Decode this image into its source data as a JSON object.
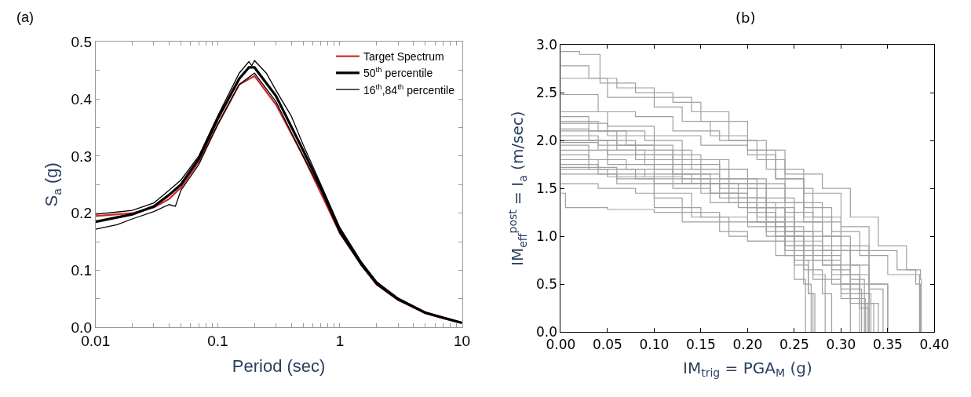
{
  "chart_data": [
    {
      "type": "line",
      "title": "(a)",
      "xlabel": "Period (sec)",
      "ylabel": "S$_{a}$ (g)",
      "log": "x",
      "legend": "top right",
      "xlim": [
        0.01,
        10
      ],
      "ylim": [
        0,
        0.5
      ],
      "xticks": [
        0.01,
        {
          "value": 0.02,
          "label": null
        },
        {
          "value": 0.03,
          "label": null
        },
        {
          "value": 0.04,
          "label": null
        },
        {
          "value": 0.05,
          "label": null
        },
        {
          "value": 0.06,
          "label": null
        },
        {
          "value": 0.07,
          "label": null
        },
        {
          "value": 0.08,
          "label": null
        },
        {
          "value": 0.09,
          "label": null
        },
        0.1,
        {
          "value": 0.2,
          "label": null
        },
        {
          "value": 0.3,
          "label": null
        },
        {
          "value": 0.4,
          "label": null
        },
        {
          "value": 0.5,
          "label": null
        },
        {
          "value": 0.6,
          "label": null
        },
        {
          "value": 0.7,
          "label": null
        },
        {
          "value": 0.8,
          "label": null
        },
        {
          "value": 0.9,
          "label": null
        },
        1,
        {
          "value": 2,
          "label": null
        },
        {
          "value": 3,
          "label": null
        },
        {
          "value": 4,
          "label": null
        },
        {
          "value": 5,
          "label": null
        },
        {
          "value": 6,
          "label": null
        },
        {
          "value": 7,
          "label": null
        },
        {
          "value": 8,
          "label": null
        },
        {
          "value": 9,
          "label": null
        },
        10
      ],
      "yticks": [
        {
          "value": 0,
          "label": "0.0"
        },
        {
          "value": 0.05,
          "label": null
        },
        0.1,
        {
          "value": 0.15,
          "label": null
        },
        0.2,
        {
          "value": 0.25,
          "label": null
        },
        0.3,
        {
          "value": 0.35,
          "label": null
        },
        0.4,
        {
          "value": 0.45,
          "label": null
        },
        0.5
      ],
      "series": [
        {
          "name": "Target Spectrum",
          "color": "#d0262a",
          "x": [
            0.01,
            0.02,
            0.03,
            0.04,
            0.05,
            0.07,
            0.1,
            0.15,
            0.2,
            0.3,
            0.5,
            0.7,
            1,
            1.5,
            2,
            3,
            5,
            7,
            10
          ],
          "values": [
            0.195,
            0.2,
            0.21,
            0.225,
            0.245,
            0.29,
            0.355,
            0.425,
            0.44,
            0.39,
            0.3,
            0.235,
            0.165,
            0.11,
            0.075,
            0.048,
            0.025,
            0.016,
            0.008
          ]
        },
        {
          "name": "50$^{th}$ percentile",
          "color": "#000000",
          "x": [
            0.01,
            0.02,
            0.03,
            0.04,
            0.05,
            0.07,
            0.1,
            0.15,
            0.18,
            0.2,
            0.3,
            0.5,
            0.7,
            1,
            1.5,
            2,
            3,
            5,
            7,
            10
          ],
          "values": [
            0.185,
            0.198,
            0.212,
            0.232,
            0.25,
            0.295,
            0.365,
            0.435,
            0.455,
            0.455,
            0.405,
            0.31,
            0.245,
            0.17,
            0.112,
            0.078,
            0.05,
            0.026,
            0.017,
            0.008
          ]
        },
        {
          "name": "16$^{th}$,84$^{th}$ percentile",
          "color": "#000000",
          "x": [
            0.01,
            0.015,
            0.02,
            0.03,
            0.04,
            0.045,
            0.05,
            0.07,
            0.1,
            0.15,
            0.2,
            0.3,
            0.5,
            0.7,
            1,
            1.5,
            2,
            3,
            5,
            10
          ],
          "values": [
            0.172,
            0.18,
            0.19,
            0.203,
            0.215,
            0.212,
            0.24,
            0.285,
            0.355,
            0.425,
            0.445,
            0.395,
            0.3,
            0.24,
            0.165,
            0.108,
            0.075,
            0.048,
            0.025,
            0.008
          ]
        },
        {
          "color": "#000000",
          "x": [
            0.01,
            0.015,
            0.02,
            0.03,
            0.04,
            0.05,
            0.07,
            0.1,
            0.15,
            0.18,
            0.19,
            0.2,
            0.25,
            0.3,
            0.4,
            0.5,
            0.7,
            1,
            1.5,
            2,
            3,
            5,
            10
          ],
          "values": [
            0.198,
            0.202,
            0.205,
            0.218,
            0.24,
            0.258,
            0.3,
            0.37,
            0.445,
            0.465,
            0.458,
            0.467,
            0.445,
            0.415,
            0.37,
            0.32,
            0.25,
            0.175,
            0.115,
            0.08,
            0.051,
            0.027,
            0.009
          ]
        }
      ]
    },
    {
      "type": "step",
      "title": "(b)",
      "xlabel": "IM$_{trig}$ = PGA$_{M}$ (g)",
      "ylabel": "IM$_{eff}$$^{post}$ = I$_{a}$ (m/sec)",
      "xlim": [
        0,
        0.4
      ],
      "ylim": [
        0,
        3.0
      ],
      "xticks": [
        {
          "value": 0,
          "label": "0.00"
        },
        0.05,
        {
          "value": 0.1,
          "label": "0.10"
        },
        0.15,
        {
          "value": 0.2,
          "label": "0.20"
        },
        0.25,
        {
          "value": 0.3,
          "label": "0.30"
        },
        0.35,
        {
          "value": 0.4,
          "label": "0.40"
        }
      ],
      "yticks": [
        {
          "value": 0,
          "label": "0.0"
        },
        0.5,
        {
          "value": 1,
          "label": "1.0"
        },
        1.5,
        {
          "value": 2,
          "label": "2.0"
        },
        2.5,
        {
          "value": 3,
          "label": "3.0"
        }
      ],
      "series": [
        {
          "color": "#a0a0a0",
          "x": [
            0,
            0.02,
            0.042,
            0.08,
            0.12,
            0.15,
            0.2,
            0.24,
            0.28,
            0.31,
            0.34,
            0.37,
            0.385,
            0.386
          ],
          "values": [
            2.93,
            2.9,
            2.6,
            2.5,
            2.4,
            2.2,
            1.9,
            1.65,
            1.5,
            1.2,
            0.9,
            0.65,
            0.55,
            0
          ]
        },
        {
          "color": "#a0a0a0",
          "x": [
            0,
            0.03,
            0.06,
            0.1,
            0.14,
            0.18,
            0.22,
            0.26,
            0.3,
            0.33,
            0.36,
            0.38,
            0.385
          ],
          "values": [
            2.78,
            2.65,
            2.55,
            2.45,
            2.3,
            2.0,
            1.7,
            1.45,
            1.1,
            0.85,
            0.65,
            0.5,
            0
          ]
        },
        {
          "color": "#a0a0a0",
          "x": [
            0,
            0.05,
            0.1,
            0.13,
            0.16,
            0.2,
            0.23,
            0.26,
            0.29,
            0.32,
            0.35,
            0.384
          ],
          "values": [
            2.65,
            2.45,
            2.35,
            2.2,
            2.05,
            1.9,
            1.6,
            1.3,
            1.05,
            0.8,
            0.6,
            0
          ]
        },
        {
          "color": "#a0a0a0",
          "x": [
            0,
            0.04,
            0.08,
            0.12,
            0.17,
            0.21,
            0.24,
            0.27,
            0.3,
            0.33,
            0.35
          ],
          "values": [
            2.48,
            2.3,
            2.25,
            2.1,
            2.0,
            1.8,
            1.5,
            1.2,
            0.9,
            0.5,
            0
          ]
        },
        {
          "color": "#a0a0a0",
          "x": [
            0,
            0.05,
            0.1,
            0.15,
            0.2,
            0.23,
            0.26,
            0.29,
            0.31,
            0.33,
            0.335
          ],
          "values": [
            2.3,
            2.15,
            2.05,
            1.95,
            1.85,
            1.6,
            1.2,
            0.9,
            0.6,
            0.3,
            0
          ]
        },
        {
          "color": "#a0a0a0",
          "x": [
            0,
            0.03,
            0.07,
            0.12,
            0.17,
            0.2,
            0.24,
            0.27,
            0.3,
            0.32,
            0.33
          ],
          "values": [
            2.25,
            2.1,
            1.95,
            1.8,
            1.7,
            1.5,
            1.25,
            1.0,
            0.7,
            0.4,
            0
          ]
        },
        {
          "color": "#a0a0a0",
          "x": [
            0,
            0.04,
            0.09,
            0.13,
            0.17,
            0.21,
            0.25,
            0.28,
            0.3,
            0.32,
            0.328
          ],
          "values": [
            2.2,
            2.1,
            2.0,
            1.75,
            1.6,
            1.4,
            1.15,
            0.85,
            0.6,
            0.3,
            0
          ]
        },
        {
          "color": "#a0a0a0",
          "x": [
            0,
            0.05,
            0.1,
            0.14,
            0.18,
            0.22,
            0.25,
            0.28,
            0.31,
            0.325
          ],
          "values": [
            2.18,
            2.05,
            1.9,
            1.7,
            1.55,
            1.3,
            1.05,
            0.85,
            0.55,
            0
          ]
        },
        {
          "color": "#a0a0a0",
          "x": [
            0,
            0.03,
            0.08,
            0.12,
            0.16,
            0.2,
            0.23,
            0.26,
            0.29,
            0.31,
            0.32
          ],
          "values": [
            2.12,
            2.0,
            1.85,
            1.65,
            1.55,
            1.35,
            1.1,
            0.9,
            0.6,
            0.35,
            0
          ]
        },
        {
          "color": "#a0a0a0",
          "x": [
            0,
            0.04,
            0.08,
            0.12,
            0.17,
            0.21,
            0.24,
            0.27,
            0.3,
            0.33,
            0.34
          ],
          "values": [
            2.05,
            1.95,
            1.8,
            1.65,
            1.5,
            1.3,
            1.0,
            0.75,
            0.5,
            0.3,
            0
          ]
        },
        {
          "color": "#a0a0a0",
          "x": [
            0,
            0.05,
            0.1,
            0.15,
            0.19,
            0.22,
            0.25,
            0.28,
            0.3,
            0.31
          ],
          "values": [
            2.0,
            1.85,
            1.7,
            1.55,
            1.4,
            1.2,
            0.95,
            0.7,
            0.4,
            0
          ]
        },
        {
          "color": "#a0a0a0",
          "x": [
            0,
            0.04,
            0.09,
            0.13,
            0.18,
            0.21,
            0.24,
            0.26,
            0.28,
            0.29
          ],
          "values": [
            1.98,
            1.9,
            1.75,
            1.6,
            1.35,
            1.15,
            0.9,
            0.65,
            0.4,
            0
          ]
        },
        {
          "color": "#a0a0a0",
          "x": [
            0,
            0.03,
            0.07,
            0.12,
            0.16,
            0.2,
            0.23,
            0.26,
            0.29,
            0.31,
            0.33
          ],
          "values": [
            1.95,
            1.8,
            1.7,
            1.6,
            1.45,
            1.25,
            1.0,
            0.75,
            0.5,
            0.3,
            0
          ]
        },
        {
          "color": "#a0a0a0",
          "x": [
            0,
            0.05,
            0.1,
            0.14,
            0.18,
            0.22,
            0.25,
            0.27,
            0.283
          ],
          "values": [
            1.9,
            1.75,
            1.65,
            1.55,
            1.4,
            1.15,
            0.9,
            0.6,
            0
          ]
        },
        {
          "color": "#a0a0a0",
          "x": [
            0,
            0.03,
            0.08,
            0.12,
            0.16,
            0.2,
            0.23,
            0.25,
            0.265,
            0.27
          ],
          "values": [
            1.85,
            1.7,
            1.6,
            1.5,
            1.35,
            1.15,
            0.95,
            0.7,
            0.4,
            0
          ]
        },
        {
          "color": "#a0a0a0",
          "x": [
            0,
            0.04,
            0.09,
            0.13,
            0.17,
            0.21,
            0.24,
            0.26,
            0.268
          ],
          "values": [
            1.8,
            1.7,
            1.62,
            1.55,
            1.4,
            1.2,
            0.85,
            0.5,
            0
          ]
        },
        {
          "color": "#a0a0a0",
          "x": [
            0,
            0.04,
            0.1,
            0.15,
            0.19,
            0.22,
            0.25,
            0.265,
            0.272
          ],
          "values": [
            1.75,
            1.65,
            1.55,
            1.45,
            1.3,
            1.05,
            0.75,
            0.4,
            0
          ]
        },
        {
          "color": "#a0a0a0",
          "x": [
            0,
            0.05,
            0.1,
            0.16,
            0.2,
            0.24,
            0.27,
            0.3,
            0.32,
            0.33
          ],
          "values": [
            1.7,
            1.62,
            1.55,
            1.45,
            1.3,
            1.05,
            0.8,
            0.5,
            0.25,
            0
          ]
        },
        {
          "color": "#a0a0a0",
          "x": [
            0,
            0.06,
            0.1,
            0.13,
            0.17,
            0.22,
            0.26,
            0.29,
            0.31,
            0.332
          ],
          "values": [
            1.65,
            1.55,
            1.4,
            1.25,
            1.15,
            1.0,
            0.85,
            0.65,
            0.4,
            0
          ]
        },
        {
          "color": "#a0a0a0",
          "x": [
            0,
            0.04,
            0.08,
            0.1,
            0.15,
            0.2,
            0.24,
            0.28,
            0.3,
            0.322
          ],
          "values": [
            1.55,
            1.5,
            1.45,
            1.3,
            1.2,
            1.1,
            0.9,
            0.7,
            0.45,
            0
          ]
        },
        {
          "color": "#a0a0a0",
          "x": [
            0,
            0.005,
            0.05,
            0.1,
            0.13,
            0.17,
            0.2,
            0.24,
            0.27,
            0.3,
            0.326
          ],
          "values": [
            1.45,
            1.3,
            1.28,
            1.25,
            1.15,
            1.05,
            0.95,
            0.8,
            0.55,
            0.35,
            0
          ]
        },
        {
          "color": "#a0a0a0",
          "x": [
            0,
            0.06,
            0.1,
            0.14,
            0.18,
            0.2,
            0.23,
            0.25,
            0.262
          ],
          "values": [
            1.72,
            1.6,
            1.45,
            1.2,
            1.0,
            0.95,
            0.8,
            0.55,
            0
          ]
        },
        {
          "color": "#a0a0a0",
          "x": [
            0,
            0.06,
            0.1,
            0.15,
            0.2,
            0.24,
            0.28,
            0.31,
            0.33,
            0.345
          ],
          "values": [
            2.1,
            1.95,
            1.85,
            1.7,
            1.55,
            1.35,
            1.0,
            0.7,
            0.45,
            0
          ]
        },
        {
          "color": "#a0a0a0",
          "x": [
            0,
            0.06,
            0.12,
            0.18,
            0.22,
            0.26,
            0.3,
            0.33,
            0.35
          ],
          "values": [
            2.0,
            1.9,
            1.8,
            1.6,
            1.35,
            1.15,
            0.85,
            0.5,
            0
          ]
        }
      ]
    }
  ]
}
